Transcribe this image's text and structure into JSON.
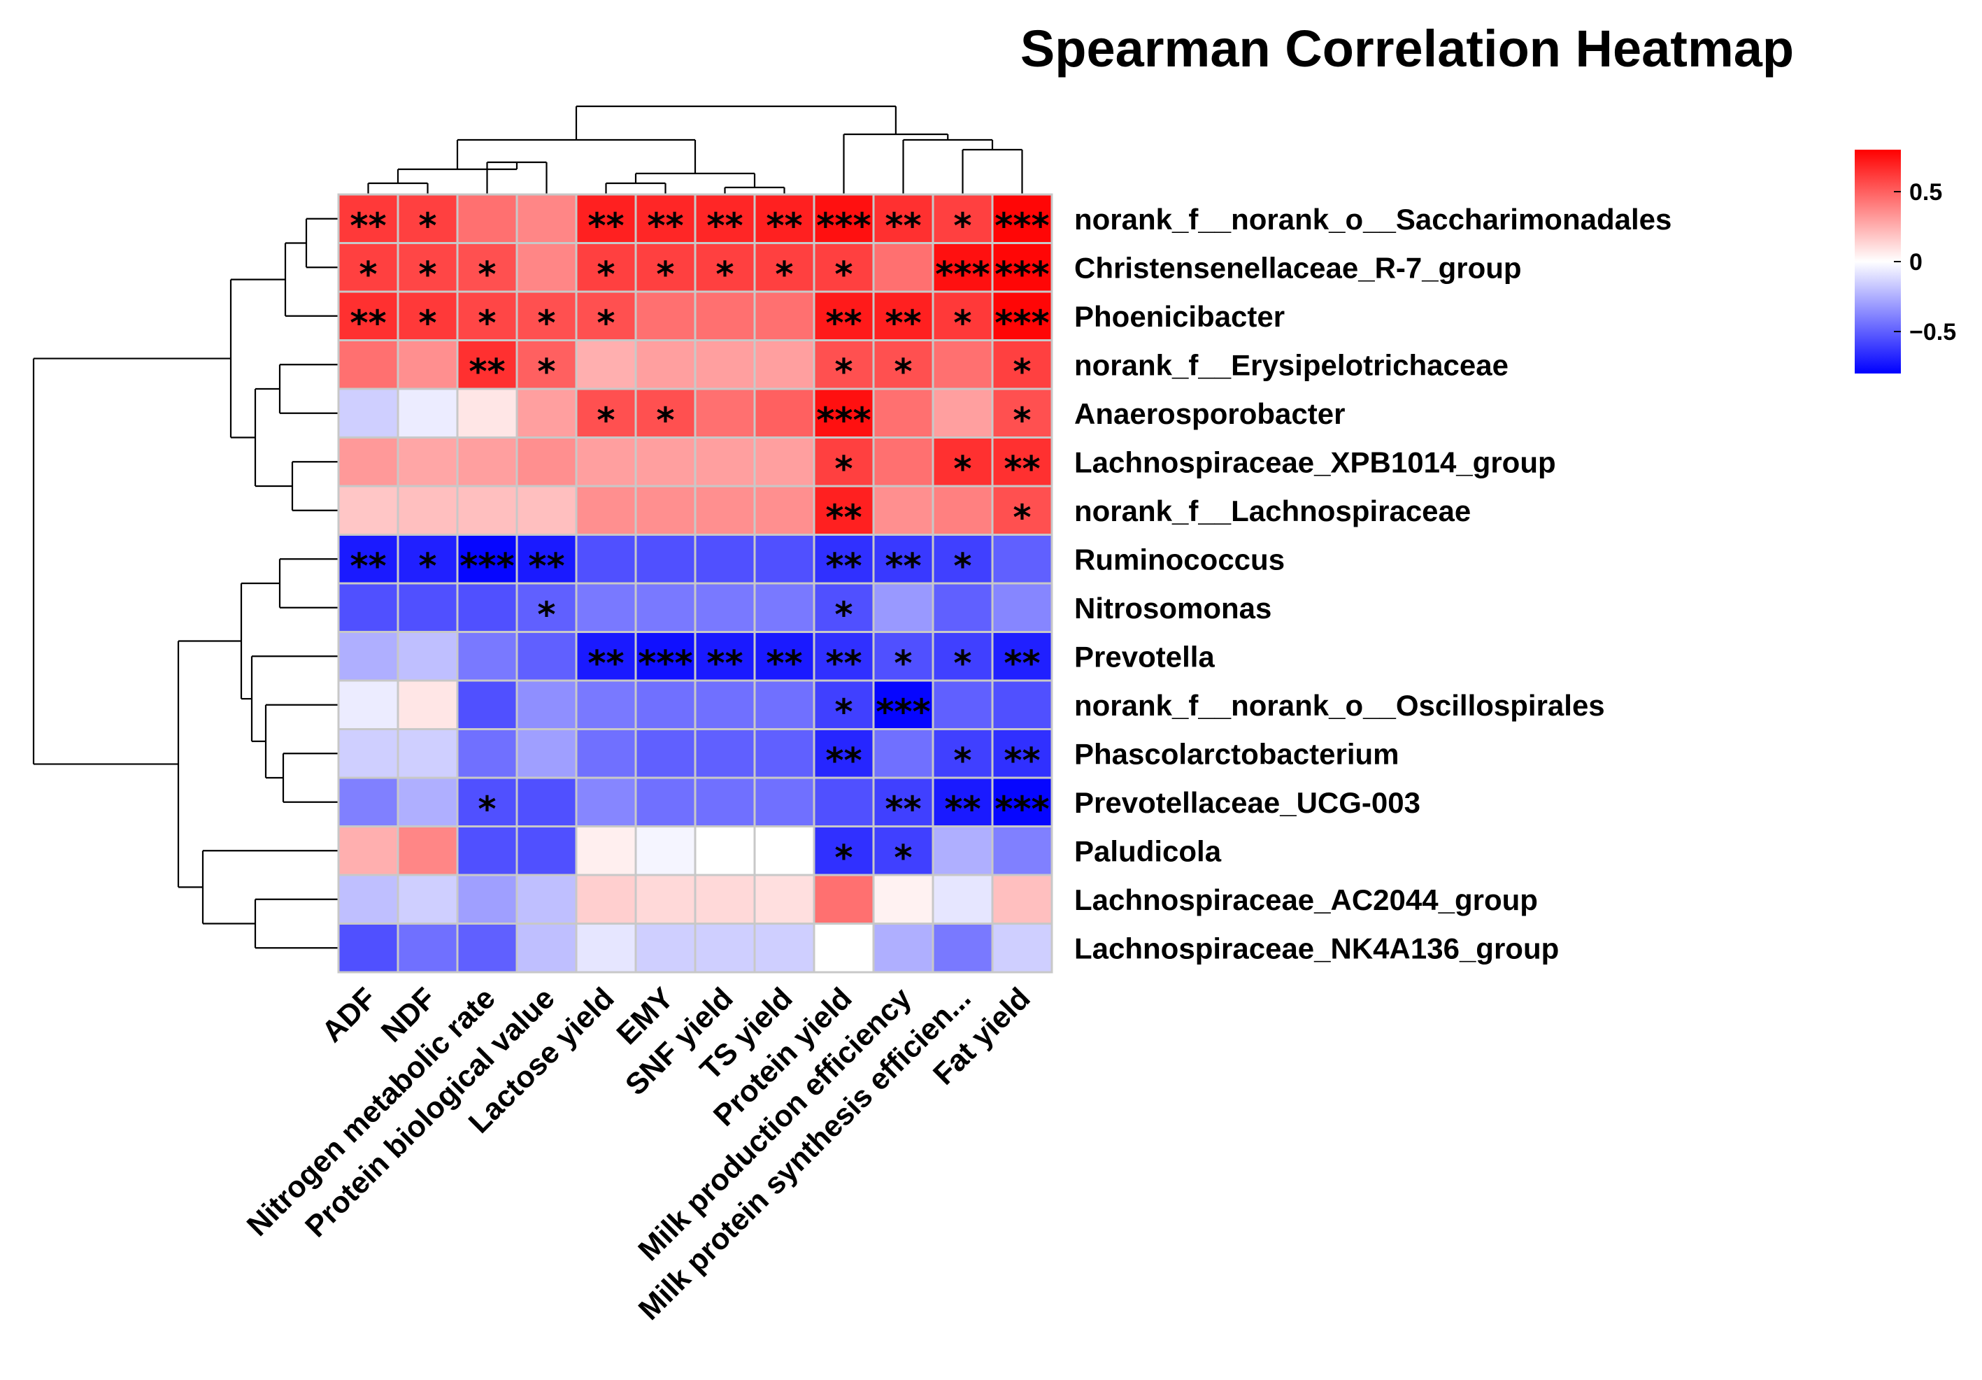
{
  "chart_data": {
    "type": "heatmap",
    "title": "Spearman Correlation Heatmap",
    "columns": [
      "ADF",
      "NDF",
      "Nitrogen metabolic rate",
      "Protein biological value",
      "Lactose yield",
      "EMY",
      "SNF yield",
      "TS yield",
      "Protein yield",
      "Milk production efficiency",
      "Milk protein synthesis efficien...",
      "Fat yield"
    ],
    "rows": [
      "norank_f__norank_o__Saccharimonadales",
      "Christensenellaceae_R-7_group",
      "Phoenicibacter",
      "norank_f__Erysipelotrichaceae",
      "Anaerosporobacter",
      "Lachnospiraceae_XPB1014_group",
      "norank_f__Lachnospiraceae",
      "Ruminococcus",
      "Nitrosomonas",
      "Prevotella",
      "norank_f__norank_o__Oscillospirales",
      "Phascolarctobacterium",
      "Prevotellaceae_UCG-003",
      "Paludicola",
      "Lachnospiraceae_AC2044_group",
      "Lachnospiraceae_NK4A136_group"
    ],
    "values": [
      [
        0.62,
        0.6,
        0.45,
        0.38,
        0.7,
        0.68,
        0.68,
        0.7,
        0.75,
        0.65,
        0.6,
        0.78
      ],
      [
        0.6,
        0.58,
        0.55,
        0.38,
        0.6,
        0.6,
        0.6,
        0.6,
        0.6,
        0.45,
        0.75,
        0.78
      ],
      [
        0.65,
        0.62,
        0.58,
        0.55,
        0.55,
        0.45,
        0.45,
        0.45,
        0.72,
        0.7,
        0.62,
        0.78
      ],
      [
        0.45,
        0.35,
        0.65,
        0.5,
        0.25,
        0.3,
        0.3,
        0.3,
        0.55,
        0.55,
        0.45,
        0.6
      ],
      [
        -0.15,
        -0.06,
        0.08,
        0.3,
        0.55,
        0.55,
        0.45,
        0.5,
        0.75,
        0.45,
        0.3,
        0.55
      ],
      [
        0.32,
        0.28,
        0.3,
        0.35,
        0.3,
        0.3,
        0.3,
        0.3,
        0.6,
        0.45,
        0.65,
        0.65
      ],
      [
        0.18,
        0.2,
        0.2,
        0.2,
        0.35,
        0.35,
        0.35,
        0.35,
        0.7,
        0.35,
        0.4,
        0.55
      ],
      [
        -0.72,
        -0.7,
        -0.78,
        -0.72,
        -0.55,
        -0.55,
        -0.55,
        -0.55,
        -0.65,
        -0.62,
        -0.6,
        -0.5
      ],
      [
        -0.55,
        -0.55,
        -0.55,
        -0.5,
        -0.42,
        -0.42,
        -0.42,
        -0.42,
        -0.55,
        -0.32,
        -0.5,
        -0.38
      ],
      [
        -0.25,
        -0.2,
        -0.42,
        -0.5,
        -0.72,
        -0.75,
        -0.72,
        -0.72,
        -0.65,
        -0.55,
        -0.6,
        -0.7
      ],
      [
        -0.06,
        0.08,
        -0.55,
        -0.35,
        -0.42,
        -0.45,
        -0.45,
        -0.45,
        -0.6,
        -0.78,
        -0.5,
        -0.55
      ],
      [
        -0.15,
        -0.15,
        -0.45,
        -0.3,
        -0.45,
        -0.5,
        -0.5,
        -0.5,
        -0.68,
        -0.45,
        -0.6,
        -0.65
      ],
      [
        -0.4,
        -0.25,
        -0.55,
        -0.55,
        -0.38,
        -0.45,
        -0.45,
        -0.45,
        -0.55,
        -0.6,
        -0.72,
        -0.78
      ],
      [
        0.25,
        0.38,
        -0.55,
        -0.55,
        0.05,
        -0.03,
        0.0,
        0.0,
        -0.65,
        -0.6,
        -0.25,
        -0.4
      ],
      [
        -0.2,
        -0.15,
        -0.3,
        -0.2,
        0.15,
        0.12,
        0.12,
        0.1,
        0.45,
        0.04,
        -0.08,
        0.2
      ],
      [
        -0.55,
        -0.45,
        -0.5,
        -0.2,
        -0.08,
        -0.15,
        -0.15,
        -0.15,
        0.0,
        -0.25,
        -0.42,
        -0.15
      ]
    ],
    "significance": [
      [
        "**",
        "*",
        "",
        "",
        "**",
        "**",
        "**",
        "**",
        "***",
        "**",
        "*",
        "***"
      ],
      [
        "*",
        "*",
        "*",
        "",
        "*",
        "*",
        "*",
        "*",
        "*",
        "",
        "***",
        "***"
      ],
      [
        "**",
        "*",
        "*",
        "*",
        "*",
        "",
        "",
        "",
        "**",
        "**",
        "*",
        "***"
      ],
      [
        "",
        "",
        "**",
        "*",
        "",
        "",
        "",
        "",
        "*",
        "*",
        "",
        "*"
      ],
      [
        "",
        "",
        "",
        "",
        "*",
        "*",
        "",
        "",
        "***",
        "",
        "",
        "*"
      ],
      [
        "",
        "",
        "",
        "",
        "",
        "",
        "",
        "",
        "*",
        "",
        "*",
        "**"
      ],
      [
        "",
        "",
        "",
        "",
        "",
        "",
        "",
        "",
        "**",
        "",
        "",
        "*"
      ],
      [
        "**",
        "*",
        "***",
        "**",
        "",
        "",
        "",
        "",
        "**",
        "**",
        "*",
        ""
      ],
      [
        "",
        "",
        "",
        "*",
        "",
        "",
        "",
        "",
        "*",
        "",
        "",
        ""
      ],
      [
        "",
        "",
        "",
        "",
        "**",
        "***",
        "**",
        "**",
        "**",
        "*",
        "*",
        "**"
      ],
      [
        "",
        "",
        "",
        "",
        "",
        "",
        "",
        "",
        "*",
        "***",
        "",
        ""
      ],
      [
        "",
        "",
        "",
        "",
        "",
        "",
        "",
        "",
        "**",
        "",
        "*",
        "**"
      ],
      [
        "",
        "",
        "*",
        "",
        "",
        "",
        "",
        "",
        "",
        "**",
        "**",
        "***"
      ],
      [
        "",
        "",
        "",
        "",
        "",
        "",
        "",
        "",
        "*",
        "*",
        "",
        ""
      ],
      [
        "",
        "",
        "",
        "",
        "",
        "",
        "",
        "",
        "",
        "",
        "",
        ""
      ],
      [
        "",
        "",
        "",
        "",
        "",
        "",
        "",
        "",
        "",
        "",
        "",
        ""
      ]
    ],
    "color_scale": {
      "min": -0.8,
      "max": 0.8,
      "low_color": "#0000ff",
      "mid_color": "#ffffff",
      "high_color": "#ff0000",
      "ticks": [
        0.5,
        0,
        -0.5
      ],
      "tick_labels": [
        "0.5",
        "0",
        "−0.5"
      ]
    },
    "legend_position": "top-right",
    "row_dendrogram": true,
    "column_dendrogram": true
  }
}
